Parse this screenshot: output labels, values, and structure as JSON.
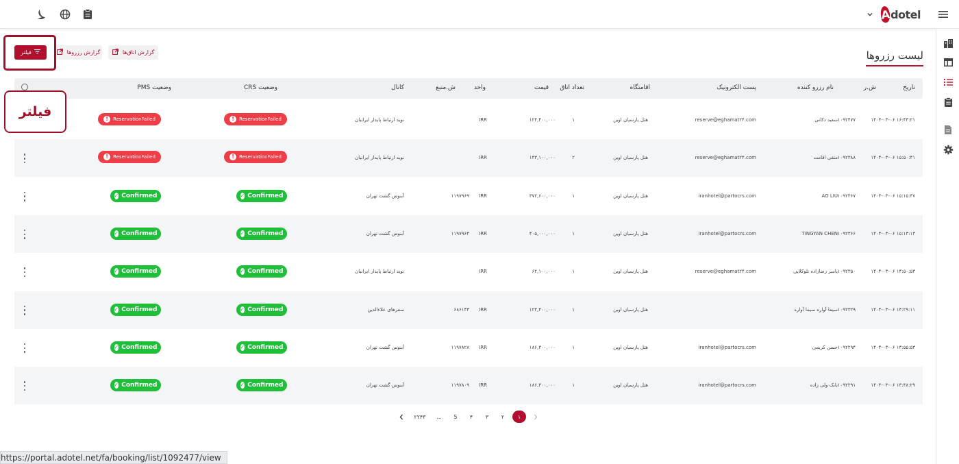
{
  "topbar": {
    "logo_a": "A",
    "logo_text": "dotel",
    "icons": [
      "moon-icon",
      "globe-icon",
      "clipboard-icon",
      "chevron-down-icon",
      "menu-icon"
    ]
  },
  "sidebar": {
    "icons": [
      "building-icon",
      "table-icon",
      "list-icon",
      "clipboard-icon",
      "document-icon",
      "gear-icon"
    ],
    "active": "list-icon"
  },
  "page": {
    "title": "لیست رزروها",
    "btn_room_report": "گزارش اتاق‌ها",
    "btn_reservation_report": "گزارش رزروها",
    "btn_filter": "فیلتر",
    "callout": "فیلتر"
  },
  "table": {
    "headers": {
      "date": "تاریخ",
      "res_no": "ش.ر",
      "booker": "نام رزرو کننده",
      "email": "پست الکترونیک",
      "hotel": "اقامتگاه",
      "rooms": "تعداد اتاق",
      "price": "قیمت",
      "unit": "واحد",
      "source_no": "ش.منبع",
      "channel": "کانال",
      "crs_status": "وضعیت CRS",
      "pms_status": "وضعیت PMS"
    },
    "rows": [
      {
        "date": "۱۴۰۴-۰۳-۰۶ ۱۶:۴۳:۲۱",
        "res_no": "۱۰۹۲۴۷۷",
        "booker": "سعید دکانی",
        "email": "reserve@eghamat۲۴.com",
        "hotel": "هتل پارسیان اوین",
        "rooms": "۱",
        "price": "۱۲۴,۴۰۰,۰۰۰",
        "unit": "IRR",
        "source_no": "",
        "channel": "نوید ارتباط پایدار ایرانیان",
        "crs": "ReservationFailed",
        "crs_ok": false,
        "pms": "ReservationFailed",
        "pms_ok": false,
        "kebab": false
      },
      {
        "date": "۱۴۰۴-۰۳-۰۶ ۱۵:۵۰:۴۱",
        "res_no": "۱۰۹۲۳۸۸",
        "booker": "متقی اقامت",
        "email": "reserve@eghamat۲۴.com",
        "hotel": "هتل پارسیان اوین",
        "rooms": "۲",
        "price": "۱۴۳,۱۰۰,۰۰۰",
        "unit": "IRR",
        "source_no": "",
        "channel": "نوید ارتباط پایدار ایرانیان",
        "crs": "ReservationFailed",
        "crs_ok": false,
        "pms": "ReservationFailed",
        "pms_ok": false,
        "kebab": true
      },
      {
        "date": "۱۴۰۴-۰۳-۰۶ ۱۵:۱۵:۴۷",
        "res_no": "۱۰۹۲۳۶۷",
        "booker": "AO LIU",
        "email": "iranhotel@partocrs.com",
        "hotel": "هتل پارسیان اوین",
        "rooms": "۱",
        "price": "۳۷۲,۶۰۰,۰۰۰",
        "unit": "IRR",
        "source_no": "۱۱۹۷۹۶۹",
        "channel": "آبنوس گشت تهران",
        "crs": "Confirmed",
        "crs_ok": true,
        "pms": "Confirmed",
        "pms_ok": true,
        "kebab": true
      },
      {
        "date": "۱۴۰۴-۰۳-۰۶ ۱۵:۱۳:۱۳",
        "res_no": "۱۰۹۲۳۶۶",
        "booker": "TINGYAN CHEN",
        "email": "iranhotel@partocrs.com",
        "hotel": "هتل پارسیان اوین",
        "rooms": "۱",
        "price": "۴۰۵,۰۰۰,۰۰۰",
        "unit": "IRR",
        "source_no": "۱۱۹۷۹۶۴",
        "channel": "آبنوس گشت تهران",
        "crs": "Confirmed",
        "crs_ok": true,
        "pms": "Confirmed",
        "pms_ok": true,
        "kebab": true
      },
      {
        "date": "۱۴۰۴-۰۳-۰۶ ۱۴:۵۰:۵۳",
        "res_no": "۱۰۹۲۳۵۰",
        "booker": "یاسر رضازاده تلوکلایی",
        "email": "reserve@eghamat۲۴.com",
        "hotel": "هتل پارسیان اوین",
        "rooms": "۱",
        "price": "۶۲,۱۰۰,۰۰۰",
        "unit": "IRR",
        "source_no": "",
        "channel": "نوید ارتباط پایدار ایرانیان",
        "crs": "Confirmed",
        "crs_ok": true,
        "pms": "Confirmed",
        "pms_ok": true,
        "kebab": true
      },
      {
        "date": "۱۴۰۴-۰۳-۰۶ ۱۴:۲۹:۱۱",
        "res_no": "۱۰۹۲۳۲۹",
        "booker": "سیما آواره سیما آواره",
        "email": "",
        "hotel": "هتل پارسیان اوین",
        "rooms": "۱",
        "price": "۱۲۴,۴۰۰,۰۰۰",
        "unit": "IRR",
        "source_no": "۶۸۶۱۴۳",
        "channel": "سفرهای علاءالدین",
        "crs": "Confirmed",
        "crs_ok": true,
        "pms": "Confirmed",
        "pms_ok": true,
        "kebab": true
      },
      {
        "date": "۱۴۰۴-۰۳-۰۶ ۱۳:۵۵:۵۳",
        "res_no": "۱۰۹۲۲۹۴",
        "booker": "حسن کریمی",
        "email": "iranhotel@partocrs.com",
        "hotel": "هتل پارسیان اوین",
        "rooms": "۱",
        "price": "۱۸۶,۳۰۰,۰۰۰",
        "unit": "IRR",
        "source_no": "۱۱۹۷۸۲۸",
        "channel": "آبنوس گشت تهران",
        "crs": "Confirmed",
        "crs_ok": true,
        "pms": "Confirmed",
        "pms_ok": true,
        "kebab": true
      },
      {
        "date": "۱۴۰۴-۰۳-۰۶ ۱۳:۴۸:۲۹",
        "res_no": "۱۰۹۲۲۹۱",
        "booker": "بابک ولی زاده",
        "email": "iranhotel@partocrs.com",
        "hotel": "هتل پارسیان اوین",
        "rooms": "۱",
        "price": "۱۸۶,۳۰۰,۰۰۰",
        "unit": "IRR",
        "source_no": "۱۱۹۷۸۰۹",
        "channel": "آبنوس گشت تهران",
        "crs": "Confirmed",
        "crs_ok": true,
        "pms": "Confirmed",
        "pms_ok": true,
        "kebab": true
      }
    ]
  },
  "pagination": {
    "pages": [
      "۱",
      "۲",
      "۳",
      "۴",
      "5"
    ],
    "ellipsis": "...",
    "last": "۲۲۴۳",
    "current": "۱"
  },
  "statusbar": {
    "url": "https://portal.adotel.net/fa/booking/list/1092477/view"
  },
  "colors": {
    "brand": "#b0102e",
    "success": "#1fbf3a",
    "danger": "#ef3d47"
  }
}
